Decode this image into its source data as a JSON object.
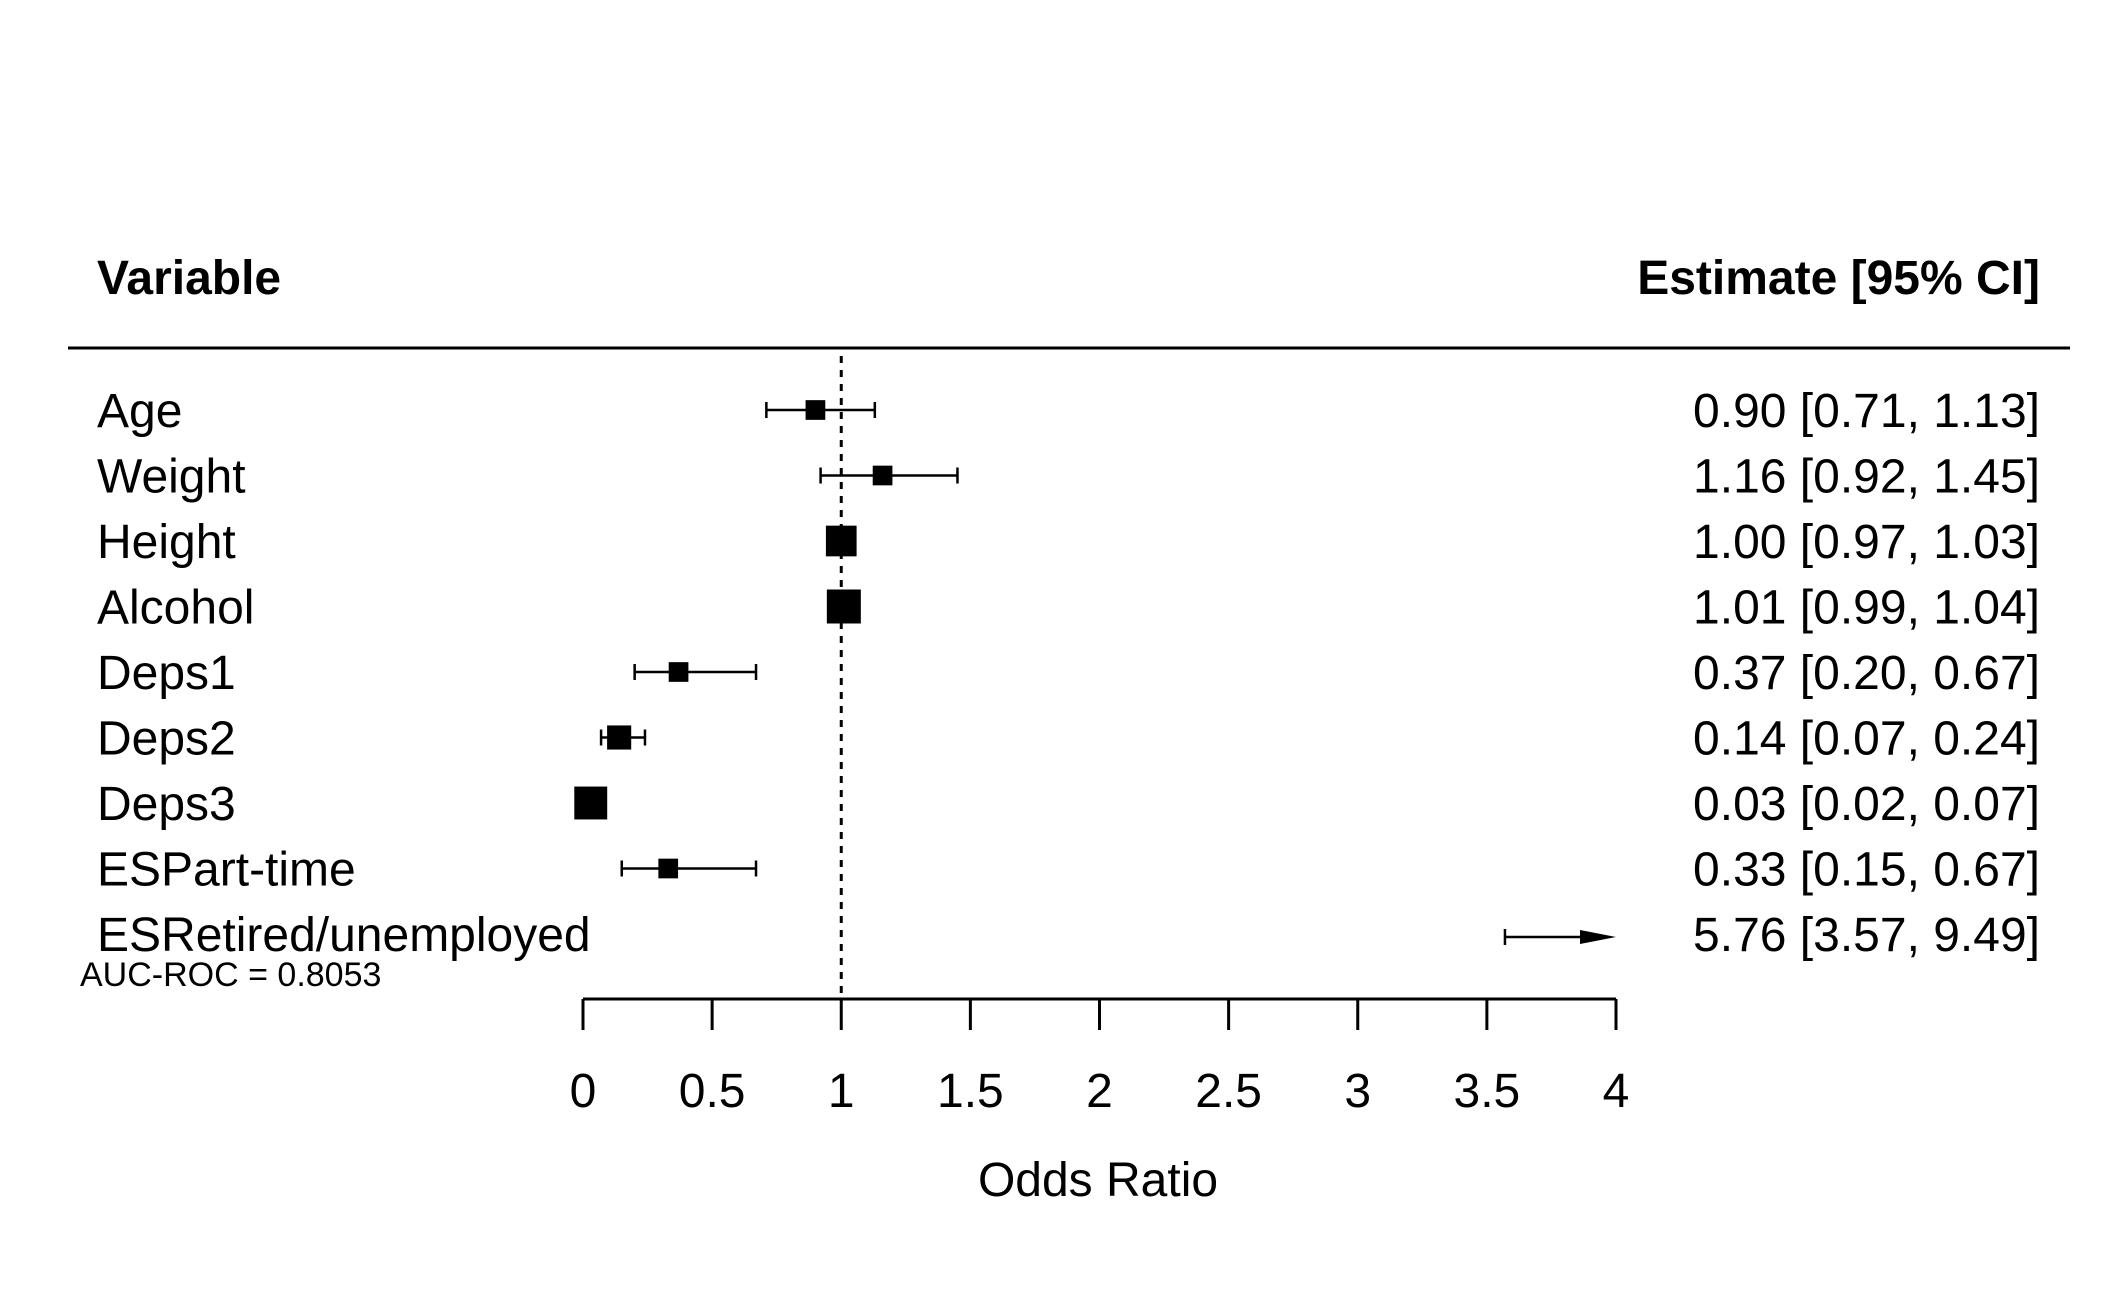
{
  "chart_data": {
    "type": "forest",
    "header": {
      "variable": "Variable",
      "estimate": "Estimate [95% CI]"
    },
    "xlabel": "Odds Ratio",
    "xlim": [
      0,
      4
    ],
    "xticks": [
      0,
      0.5,
      1,
      1.5,
      2,
      2.5,
      3,
      3.5,
      4
    ],
    "xtick_labels": [
      "0",
      "0.5",
      "1",
      "1.5",
      "2",
      "2.5",
      "3",
      "3.5",
      "4"
    ],
    "reference_line": 1,
    "note": "AUC-ROC = 0.8053",
    "rows": [
      {
        "variable": "Age",
        "estimate": 0.9,
        "lower": 0.71,
        "upper": 1.13,
        "weight": 0.35,
        "text": "0.90 [0.71, 1.13]"
      },
      {
        "variable": "Weight",
        "estimate": 1.16,
        "lower": 0.92,
        "upper": 1.45,
        "weight": 0.35,
        "text": "1.16 [0.92, 1.45]"
      },
      {
        "variable": "Height",
        "estimate": 1.0,
        "lower": 0.97,
        "upper": 1.03,
        "weight": 0.85,
        "text": "1.00 [0.97, 1.03]"
      },
      {
        "variable": "Alcohol",
        "estimate": 1.01,
        "lower": 0.99,
        "upper": 1.04,
        "weight": 1.0,
        "text": "1.01 [0.99, 1.04]"
      },
      {
        "variable": "Deps1",
        "estimate": 0.37,
        "lower": 0.2,
        "upper": 0.67,
        "weight": 0.35,
        "text": "0.37 [0.20, 0.67]"
      },
      {
        "variable": "Deps2",
        "estimate": 0.14,
        "lower": 0.07,
        "upper": 0.24,
        "weight": 0.55,
        "text": "0.14 [0.07, 0.24]"
      },
      {
        "variable": "Deps3",
        "estimate": 0.03,
        "lower": 0.02,
        "upper": 0.07,
        "weight": 0.95,
        "text": "0.03 [0.02, 0.07]"
      },
      {
        "variable": "ESPart-time",
        "estimate": 0.33,
        "lower": 0.15,
        "upper": 0.67,
        "weight": 0.35,
        "text": "0.33 [0.15, 0.67]"
      },
      {
        "variable": "ESRetired/unemployed",
        "estimate": 5.76,
        "lower": 3.57,
        "upper": 9.49,
        "weight": 0.35,
        "text": "5.76 [3.57, 9.49]"
      }
    ]
  }
}
